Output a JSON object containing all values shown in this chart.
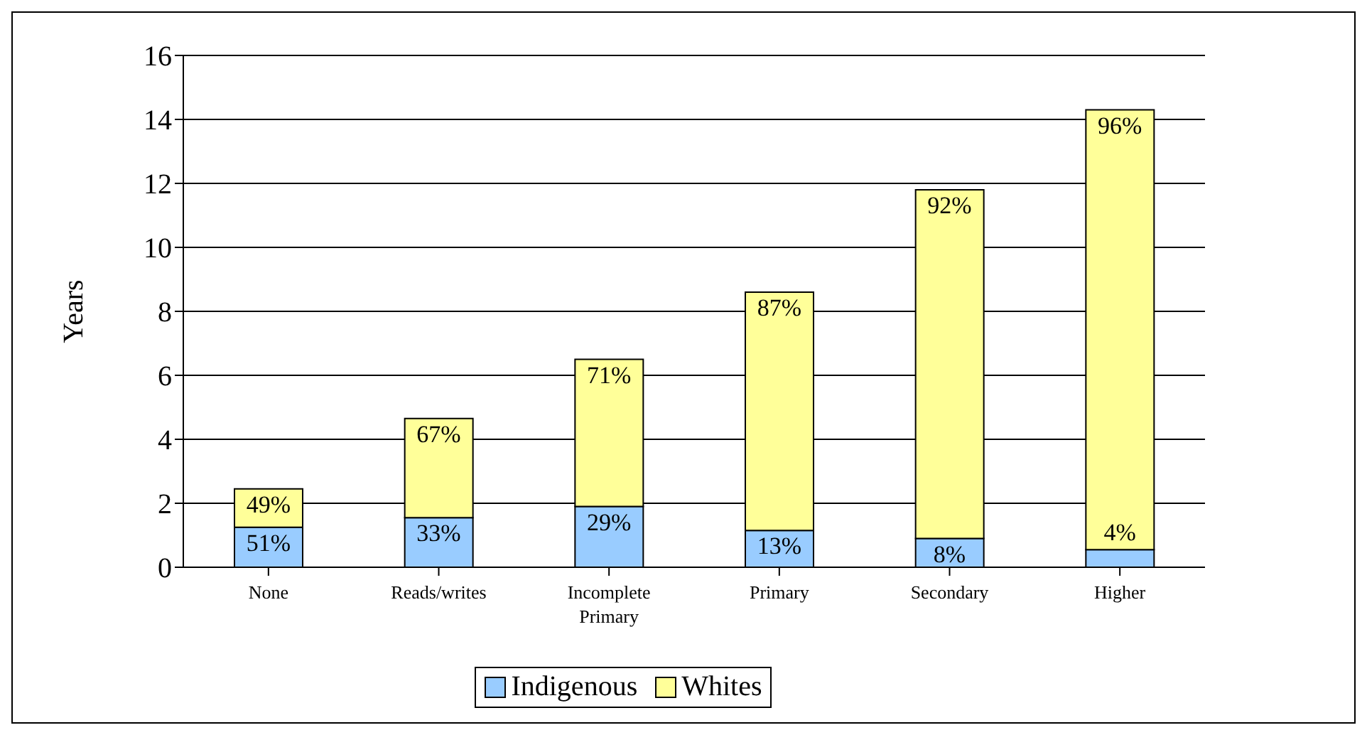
{
  "chart_data": {
    "type": "bar",
    "stacked": true,
    "ylabel": "Years",
    "categories": [
      "None",
      "Reads/writes",
      "Incomplete Primary",
      "Primary",
      "Secondary",
      "Higher"
    ],
    "series": [
      {
        "name": "Indigenous",
        "color": "#99ccff",
        "values": [
          1.25,
          1.55,
          1.9,
          1.15,
          0.9,
          0.55
        ]
      },
      {
        "name": "Whites",
        "color": "#ffff99",
        "values": [
          1.2,
          3.1,
          4.6,
          7.45,
          10.9,
          13.75
        ]
      }
    ],
    "annotations": [
      {
        "text": "51%",
        "x": "None",
        "y": 1.25
      },
      {
        "text": "49%",
        "x": "None",
        "y": 2.45
      },
      {
        "text": "33%",
        "x": "Reads/writes",
        "y": 1.55
      },
      {
        "text": "67%",
        "x": "Reads/writes",
        "y": 4.65
      },
      {
        "text": "29%",
        "x": "Incomplete Primary",
        "y": 1.9
      },
      {
        "text": "71%",
        "x": "Incomplete Primary",
        "y": 6.5
      },
      {
        "text": "13%",
        "x": "Primary",
        "y": 1.15
      },
      {
        "text": "87%",
        "x": "Primary",
        "y": 8.6
      },
      {
        "text": "8%",
        "x": "Secondary",
        "y": 0.9
      },
      {
        "text": "92%",
        "x": "Secondary",
        "y": 11.8
      },
      {
        "text": "4%",
        "x": "Higher",
        "y": 0.55
      },
      {
        "text": "96%",
        "x": "Higher",
        "y": 14.3
      }
    ],
    "ylim": [
      0,
      16
    ],
    "yticks": [
      0,
      2,
      4,
      6,
      8,
      10,
      12,
      14,
      16
    ],
    "grid": "y",
    "legend": "bottom"
  }
}
